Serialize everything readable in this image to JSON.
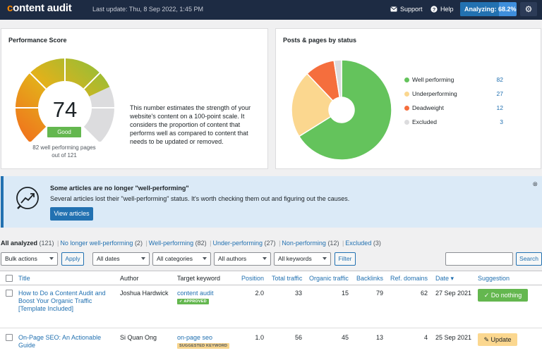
{
  "header": {
    "logo_first": "c",
    "logo_rest": "ontent audit",
    "last_update": "Last update: Thu, 8 Sep 2022, 1:45 PM",
    "support": "Support",
    "help": "Help",
    "analyzing": "Analyzing: 68.2%",
    "analyzing_progress": 68.2
  },
  "performance": {
    "title": "Performance Score",
    "score": "74",
    "grade": "Good",
    "well_pages": "82 well performing pages",
    "out_of": "out of 121",
    "description": "This number estimates the strength of your website's content on a 100-point scale. It considers the proportion of content that performs well as compared to content that needs to be updated or removed.",
    "gauge_value": 74
  },
  "posts_by_status": {
    "title": "Posts & pages by status",
    "items": [
      {
        "label": "Well performing",
        "count": "82",
        "color": "#64c35c"
      },
      {
        "label": "Underperforming",
        "count": "27",
        "color": "#fbd78f"
      },
      {
        "label": "Deadweight",
        "count": "12",
        "color": "#f56e3d"
      },
      {
        "label": "Excluded",
        "count": "3",
        "color": "#dcdcde"
      }
    ]
  },
  "notice": {
    "title": "Some articles are no longer \"well-performing\"",
    "text": "Several articles lost their \"well-performing\" status. It's worth checking them out and figuring out the causes.",
    "button": "View articles"
  },
  "filter_links": [
    {
      "label": "All analyzed",
      "count": "(121)",
      "current": true
    },
    {
      "label": "No longer well-performing",
      "count": "(2)"
    },
    {
      "label": "Well-performing",
      "count": "(82)"
    },
    {
      "label": "Under-performing",
      "count": "(27)"
    },
    {
      "label": "Non-performing",
      "count": "(12)"
    },
    {
      "label": "Excluded",
      "count": "(3)"
    }
  ],
  "toolbar": {
    "bulk_actions": "Bulk actions",
    "apply": "Apply",
    "all_dates": "All dates",
    "all_categories": "All categories",
    "all_authors": "All authors",
    "all_keywords": "All keywords",
    "filter": "Filter",
    "search": "Search"
  },
  "columns": {
    "title": "Title",
    "author": "Author",
    "keyword": "Target keyword",
    "position": "Position",
    "total_traffic": "Total traffic",
    "organic_traffic": "Organic traffic",
    "backlinks": "Backlinks",
    "ref_domains": "Ref. domains",
    "date": "Date ▾",
    "suggestion": "Suggestion"
  },
  "rows": [
    {
      "title_l1": "How to Do a Content Audit and",
      "title_l2": "Boost Your Organic Traffic",
      "title_l3": "[Template Included]",
      "author": "Joshua Hardwick",
      "keyword": "content audit",
      "keyword_badge": "✓ APPROVED",
      "position": "2.0",
      "total_traffic": "33",
      "organic_traffic": "15",
      "backlinks": "79",
      "ref_domains": "62",
      "date": "27 Sep 2021",
      "suggestion": "✓  Do nothing"
    },
    {
      "title_l1": "On-Page SEO: An Actionable",
      "title_l2": "Guide",
      "author": "Si Quan Ong",
      "keyword": "on-page seo",
      "keyword_badge": "SUGGESTED KEYWORD",
      "position": "1.0",
      "total_traffic": "56",
      "organic_traffic": "45",
      "backlinks": "13",
      "ref_domains": "4",
      "date": "25 Sep 2021",
      "suggestion": "✎  Update"
    }
  ]
}
